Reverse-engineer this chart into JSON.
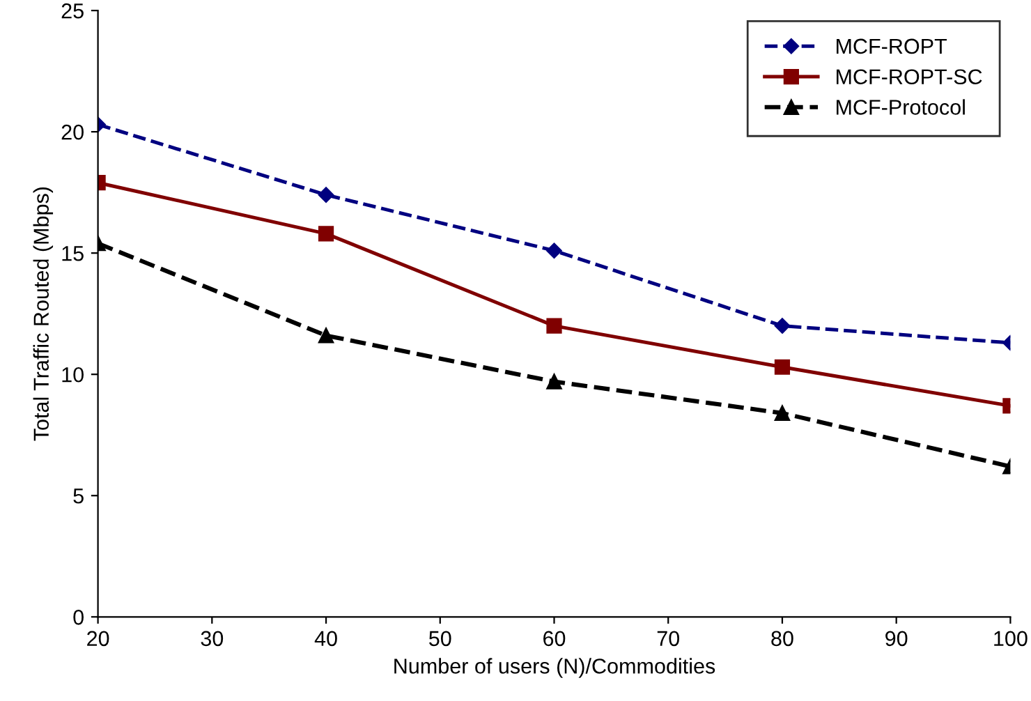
{
  "chart_data": {
    "type": "line",
    "xlabel": "Number of users (N)/Commodities",
    "ylabel": "Total Traffic Routed (Mbps)",
    "x": [
      20,
      40,
      60,
      80,
      100
    ],
    "series": [
      {
        "name": "MCF-ROPT",
        "color": "#000080",
        "values": [
          20.3,
          17.4,
          15.1,
          12.0,
          11.3
        ],
        "marker": "diamond",
        "line_style": "dashed"
      },
      {
        "name": "MCF-ROPT-SC",
        "color": "#800000",
        "values": [
          17.9,
          15.8,
          12.0,
          10.3,
          8.7
        ],
        "marker": "square",
        "line_style": "solid"
      },
      {
        "name": "MCF-Protocol",
        "color": "#000000",
        "values": [
          15.4,
          11.6,
          9.7,
          8.4,
          6.2
        ],
        "marker": "triangle",
        "line_style": "dashed"
      }
    ],
    "xlim": [
      20,
      100
    ],
    "xticks": [
      20,
      30,
      40,
      50,
      60,
      70,
      80,
      90,
      100
    ],
    "ylim": [
      0,
      25
    ],
    "yticks": [
      0,
      5,
      10,
      15,
      20,
      25
    ],
    "grid": false,
    "legend": "top right"
  }
}
